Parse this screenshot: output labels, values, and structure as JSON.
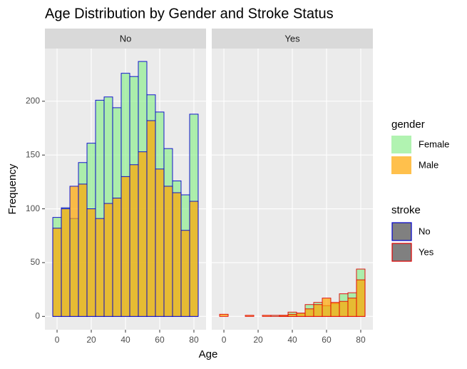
{
  "chart_data": {
    "type": "histogram",
    "title": "Age Distribution by Gender and Stroke Status",
    "x_label": "Age",
    "y_label": "Frequency",
    "bins": [
      -2.5,
      2.5,
      7.5,
      12.5,
      17.5,
      22.5,
      27.5,
      32.5,
      37.5,
      42.5,
      47.5,
      52.5,
      57.5,
      62.5,
      67.5,
      72.5,
      77.5,
      82.5
    ],
    "xlim": [
      -7.1,
      87.1
    ],
    "xticks": [
      0,
      20,
      40,
      60,
      80
    ],
    "ylim": [
      -12.4,
      249
    ],
    "yticks": [
      0,
      50,
      100,
      150,
      200
    ],
    "grid": true,
    "panels": [
      {
        "label": "No"
      },
      {
        "label": "Yes"
      }
    ],
    "series": [
      {
        "name": "Female",
        "color": "#90ee90",
        "values": [
          [
            92,
            101,
            91,
            143,
            161,
            201,
            204,
            194,
            226,
            223,
            237,
            206,
            190,
            156,
            126,
            113,
            188
          ],
          [
            0,
            0,
            0,
            0,
            0,
            0,
            1,
            1,
            4,
            3,
            11,
            13,
            10,
            12,
            21,
            22,
            44
          ]
        ]
      },
      {
        "name": "Male",
        "color": "#ffa500",
        "values": [
          [
            82,
            100,
            121,
            123,
            100,
            91,
            105,
            110,
            130,
            141,
            153,
            182,
            137,
            121,
            115,
            80,
            107
          ],
          [
            2,
            0,
            0,
            1,
            0,
            1,
            0,
            1,
            2,
            3,
            7,
            11,
            17,
            13,
            14,
            17,
            34
          ]
        ]
      }
    ],
    "legends": [
      {
        "title": "gender"
      },
      {
        "title": "stroke",
        "entries": [
          {
            "name": "No",
            "color": "#0000cd"
          },
          {
            "name": "Yes",
            "color": "#e00000"
          }
        ]
      }
    ]
  }
}
